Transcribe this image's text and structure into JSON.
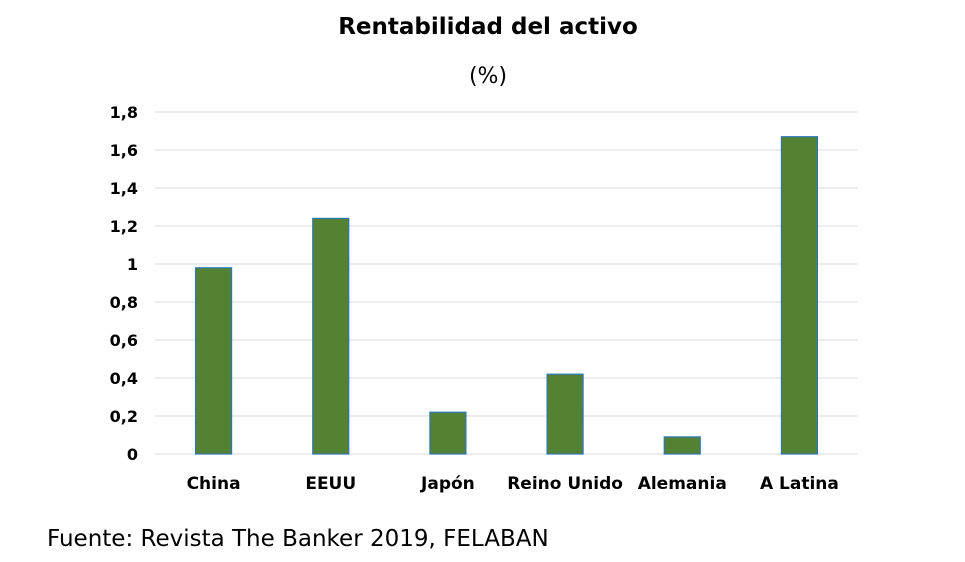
{
  "chart_data": {
    "type": "bar",
    "title": "Rentabilidad del activo",
    "subtitle": "(%)",
    "categories": [
      "China",
      "EEUU",
      "Japón",
      "Reino Unido",
      "Alemania",
      "A Latina"
    ],
    "values": [
      0.98,
      1.24,
      0.22,
      0.42,
      0.09,
      1.67
    ],
    "ylim": [
      0,
      1.8
    ],
    "yticks": [
      "0",
      "0,2",
      "0,4",
      "0,6",
      "0,8",
      "1",
      "1,2",
      "1,4",
      "1,6",
      "1,8"
    ],
    "grid": true,
    "legend": "none",
    "bar_color": "#548235",
    "bar_border_color": "#2E75B6",
    "grid_color": "#D9D9D9"
  },
  "source": "Fuente: Revista The Banker 2019, FELABAN"
}
